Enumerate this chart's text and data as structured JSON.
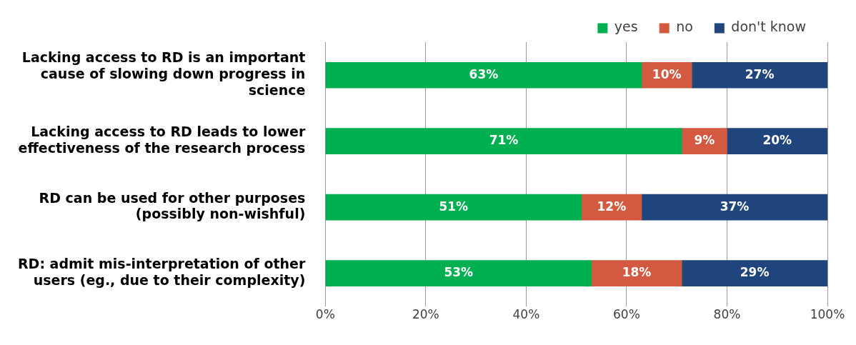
{
  "chart_data": {
    "type": "bar",
    "orientation": "horizontal",
    "stacked": true,
    "categories": [
      "Lacking access to RD is an important cause of slowing down progress in science",
      "Lacking access to RD leads to lower effectiveness of the research process",
      "RD can be used for other purposes (possibly non-wishful)",
      "RD: admit mis-interpretation of other users (eg., due to their complexity)"
    ],
    "series": [
      {
        "name": "yes",
        "color": "#00b050",
        "values": [
          63,
          71,
          51,
          53
        ],
        "value_labels": [
          "63%",
          "71%",
          "51%",
          "53%"
        ]
      },
      {
        "name": "no",
        "color": "#d35a40",
        "values": [
          10,
          9,
          12,
          18
        ],
        "value_labels": [
          "10%",
          "9%",
          "12%",
          "18%"
        ]
      },
      {
        "name": "don't know",
        "color": "#1f457c",
        "values": [
          27,
          20,
          37,
          29
        ],
        "value_labels": [
          "27%",
          "20%",
          "37%",
          "29%"
        ]
      }
    ],
    "xlim": [
      0,
      100
    ],
    "xticks": [
      {
        "value": 0,
        "label": "0%"
      },
      {
        "value": 20,
        "label": "20%"
      },
      {
        "value": 40,
        "label": "40%"
      },
      {
        "value": 60,
        "label": "60%"
      },
      {
        "value": 80,
        "label": "80%"
      },
      {
        "value": 100,
        "label": "100%"
      }
    ],
    "grid": "x",
    "legend": "top right"
  }
}
